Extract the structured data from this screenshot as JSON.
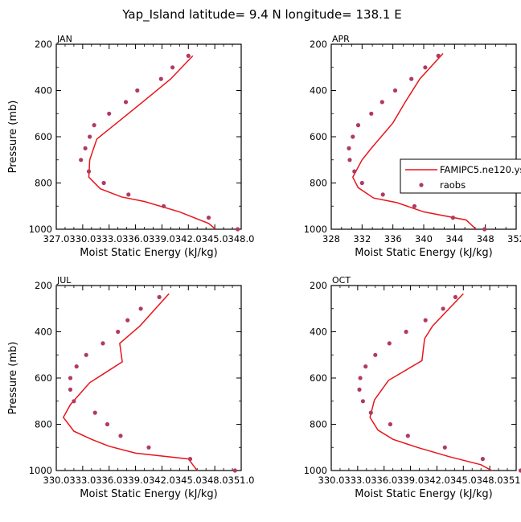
{
  "figure": {
    "title": "Yap_Island  latitude= 9.4 N longitude= 138.1 E"
  },
  "style": {
    "model_color": "#e8151b",
    "obs_color": "#b03a63"
  },
  "legend": {
    "entries": [
      "FAMIPC5.ne120.ys",
      "raobs"
    ]
  },
  "chart_data": [
    {
      "type": "line",
      "panel": "JAN",
      "title": "JAN",
      "xlabel": "Moist Static Energy (kJ/kg)",
      "ylabel": "Pressure (mb)",
      "xlim": [
        327.0,
        348.0
      ],
      "ylim": [
        1000,
        200
      ],
      "xticks": [
        "327.0",
        "330.0",
        "333.0",
        "336.0",
        "339.0",
        "342.0",
        "345.0",
        "348.0"
      ],
      "yticks": [
        "200",
        "400",
        "600",
        "800",
        "1000"
      ],
      "series": [
        {
          "name": "FAMIPC5.ne120.ys",
          "style": "line",
          "points": [
            [
              345.1,
              1000
            ],
            [
              344.3,
              975
            ],
            [
              341.0,
              925
            ],
            [
              337.0,
              880
            ],
            [
              334.4,
              860
            ],
            [
              332.0,
              825
            ],
            [
              330.7,
              775
            ],
            [
              330.8,
              700
            ],
            [
              331.6,
              610
            ],
            [
              334.2,
              530
            ],
            [
              336.8,
              450
            ],
            [
              340.0,
              350
            ],
            [
              342.5,
              250
            ]
          ]
        },
        {
          "name": "raobs",
          "style": "markers",
          "points": [
            [
              347.6,
              1000
            ],
            [
              344.3,
              950
            ],
            [
              339.2,
              900
            ],
            [
              335.2,
              850
            ],
            [
              332.4,
              800
            ],
            [
              330.7,
              750
            ],
            [
              329.8,
              700
            ],
            [
              330.3,
              650
            ],
            [
              330.8,
              600
            ],
            [
              331.3,
              550
            ],
            [
              333.0,
              500
            ],
            [
              334.9,
              450
            ],
            [
              336.2,
              400
            ],
            [
              338.9,
              350
            ],
            [
              340.2,
              300
            ],
            [
              342.0,
              250
            ]
          ]
        }
      ]
    },
    {
      "type": "line",
      "panel": "APR",
      "title": "APR",
      "xlabel": "Moist Static Energy (kJ/kg)",
      "ylabel": "",
      "xlim": [
        328,
        352
      ],
      "ylim": [
        1000,
        200
      ],
      "xticks": [
        "328",
        "332",
        "336",
        "340",
        "344",
        "348",
        "352"
      ],
      "yticks": [
        "200",
        "400",
        "600",
        "800",
        "1000"
      ],
      "series": [
        {
          "name": "FAMIPC5.ne120.ys",
          "style": "line",
          "points": [
            [
              346.8,
              1000
            ],
            [
              345.5,
              960
            ],
            [
              340.0,
              925
            ],
            [
              336.5,
              885
            ],
            [
              333.5,
              865
            ],
            [
              331.5,
              820
            ],
            [
              330.8,
              775
            ],
            [
              332.0,
              700
            ],
            [
              333.2,
              650
            ],
            [
              336.0,
              540
            ],
            [
              337.6,
              450
            ],
            [
              339.5,
              350
            ],
            [
              342.5,
              240
            ]
          ]
        },
        {
          "name": "raobs",
          "style": "markers",
          "points": [
            [
              347.9,
              1000
            ],
            [
              343.8,
              950
            ],
            [
              338.8,
              900
            ],
            [
              334.7,
              850
            ],
            [
              332.0,
              800
            ],
            [
              331.0,
              750
            ],
            [
              330.4,
              700
            ],
            [
              330.3,
              650
            ],
            [
              330.8,
              600
            ],
            [
              331.5,
              550
            ],
            [
              333.2,
              500
            ],
            [
              334.6,
              450
            ],
            [
              336.3,
              400
            ],
            [
              338.4,
              350
            ],
            [
              340.2,
              300
            ],
            [
              341.9,
              250
            ]
          ]
        }
      ]
    },
    {
      "type": "line",
      "panel": "JUL",
      "title": "JUL",
      "xlabel": "Moist Static Energy (kJ/kg)",
      "ylabel": "Pressure (mb)",
      "xlim": [
        330.0,
        351.0
      ],
      "ylim": [
        1000,
        200
      ],
      "xticks": [
        "330.0",
        "333.0",
        "336.0",
        "339.0",
        "342.0",
        "345.0",
        "348.0",
        "351.0"
      ],
      "yticks": [
        "200",
        "400",
        "600",
        "800",
        "1000"
      ],
      "series": [
        {
          "name": "FAMIPC5.ne120.ys",
          "style": "line",
          "points": [
            [
              346.2,
              1010
            ],
            [
              345.5,
              975
            ],
            [
              345.0,
              950
            ],
            [
              339.0,
              925
            ],
            [
              336.0,
              895
            ],
            [
              334.0,
              865
            ],
            [
              332.0,
              830
            ],
            [
              330.8,
              770
            ],
            [
              331.6,
              715
            ],
            [
              333.8,
              620
            ],
            [
              337.5,
              530
            ],
            [
              337.2,
              450
            ],
            [
              339.5,
              375
            ],
            [
              342.8,
              235
            ]
          ]
        },
        {
          "name": "raobs",
          "style": "markers",
          "points": [
            [
              350.3,
              1000
            ],
            [
              345.2,
              950
            ],
            [
              340.5,
              900
            ],
            [
              337.3,
              850
            ],
            [
              335.8,
              800
            ],
            [
              334.4,
              750
            ],
            [
              332.0,
              700
            ],
            [
              331.6,
              650
            ],
            [
              331.6,
              600
            ],
            [
              332.3,
              550
            ],
            [
              333.4,
              500
            ],
            [
              335.3,
              450
            ],
            [
              337.0,
              400
            ],
            [
              338.1,
              350
            ],
            [
              339.6,
              300
            ],
            [
              341.7,
              250
            ]
          ]
        }
      ]
    },
    {
      "type": "line",
      "panel": "OCT",
      "title": "OCT",
      "xlabel": "Moist Static Energy (kJ/kg)",
      "ylabel": "",
      "xlim": [
        330.0,
        351.0
      ],
      "ylim": [
        1000,
        200
      ],
      "xticks": [
        "330.0",
        "333.0",
        "336.0",
        "339.0",
        "342.0",
        "345.0",
        "348.0",
        "351.0"
      ],
      "yticks": [
        "200",
        "400",
        "600",
        "800",
        "1000"
      ],
      "series": [
        {
          "name": "FAMIPC5.ne120.ys",
          "style": "line",
          "points": [
            [
              348.7,
              1010
            ],
            [
              347.0,
              975
            ],
            [
              343.4,
              940
            ],
            [
              339.8,
              900
            ],
            [
              337.0,
              865
            ],
            [
              335.3,
              825
            ],
            [
              334.4,
              770
            ],
            [
              334.9,
              695
            ],
            [
              336.5,
              610
            ],
            [
              340.3,
              525
            ],
            [
              340.6,
              430
            ],
            [
              341.5,
              375
            ],
            [
              345.0,
              235
            ]
          ]
        },
        {
          "name": "raobs",
          "style": "markers",
          "points": [
            [
              351.5,
              1000
            ],
            [
              347.2,
              950
            ],
            [
              342.9,
              900
            ],
            [
              338.7,
              850
            ],
            [
              336.7,
              800
            ],
            [
              334.5,
              750
            ],
            [
              333.6,
              700
            ],
            [
              333.2,
              650
            ],
            [
              333.3,
              600
            ],
            [
              333.9,
              550
            ],
            [
              335.0,
              500
            ],
            [
              336.6,
              450
            ],
            [
              338.5,
              400
            ],
            [
              340.7,
              350
            ],
            [
              342.7,
              300
            ],
            [
              344.1,
              250
            ]
          ]
        }
      ]
    }
  ]
}
